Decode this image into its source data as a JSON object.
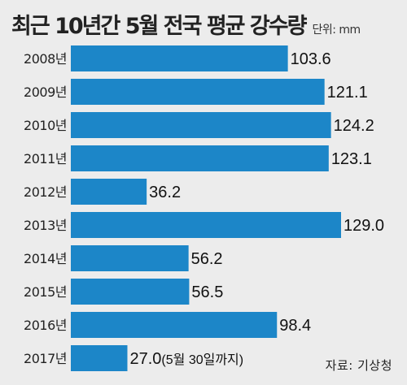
{
  "title": "최근 10년간 5월 전국 평균 강수량",
  "unit": "단위: mm",
  "source": "자료: 기상청",
  "bar_color": "#1c86c8",
  "background_color": "#ececec",
  "chart_data": {
    "type": "bar",
    "orientation": "horizontal",
    "categories": [
      "2008년",
      "2009년",
      "2010년",
      "2011년",
      "2012년",
      "2013년",
      "2014년",
      "2015년",
      "2016년",
      "2017년"
    ],
    "values": [
      103.6,
      121.1,
      124.2,
      123.1,
      36.2,
      129.0,
      56.2,
      56.5,
      98.4,
      27.0
    ],
    "data_labels": [
      "103.6",
      "121.1",
      "124.2",
      "123.1",
      "36.2",
      "129.0",
      "56.2",
      "56.5",
      "98.4",
      "27.0"
    ],
    "annotations": [
      {
        "category": "2017년",
        "text": "(5월 30일까지)"
      }
    ],
    "title": "최근 10년간 5월 전국 평균 강수량",
    "xlabel": "",
    "ylabel": "",
    "xlim": [
      0,
      129.0
    ],
    "grid": false,
    "legend": "none"
  }
}
